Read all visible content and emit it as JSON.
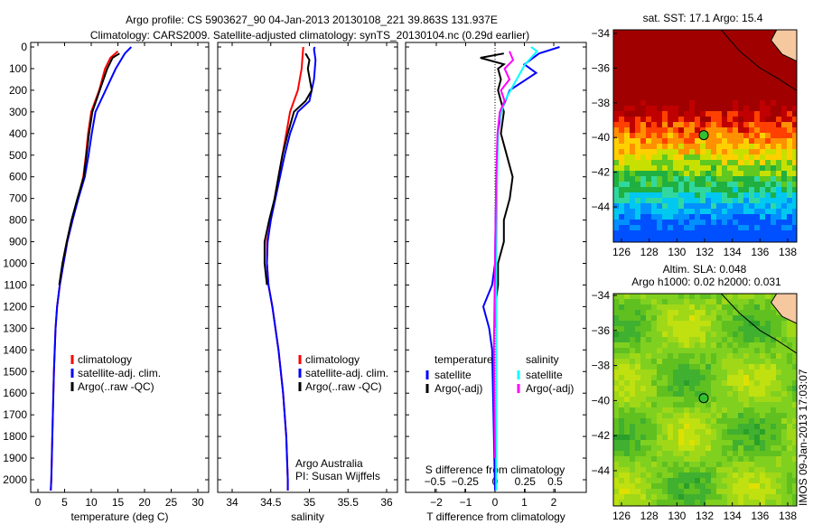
{
  "title_line1": "Argo profile: CS 5903627_90 04-Jan-2013 20130108_221 39.863S 131.937E",
  "title_line2": "Climatology: CARS2009. Satellite-adjusted climatology: synTS_20130104.nc (0.29d earlier)",
  "colors": {
    "climatology": "#ff0000",
    "satellite": "#0000ff",
    "argo": "#000000",
    "sal_satellite": "#00ffff",
    "sal_argo": "#ff00ff"
  },
  "chart_data": [
    {
      "type": "line",
      "id": "temperature",
      "xlabel": "temperature (deg C)",
      "ylabel": "",
      "xlim": [
        -2,
        31
      ],
      "ylim": [
        2070,
        0
      ],
      "xticks": [
        0,
        5,
        10,
        15,
        20,
        25,
        30
      ],
      "yticks": [
        0,
        100,
        200,
        300,
        400,
        500,
        600,
        700,
        800,
        900,
        1000,
        1100,
        1200,
        1300,
        1400,
        1500,
        1600,
        1700,
        1800,
        1900,
        2000
      ],
      "legend": [
        "climatology",
        "satellite-adj. clim.",
        "Argo(..raw -QC)"
      ],
      "legend_placement": "bottom-center",
      "series": [
        {
          "name": "climatology",
          "color": "#ff0000",
          "depth": [
            20,
            50,
            100,
            200,
            300,
            400,
            500,
            600,
            700,
            800,
            900,
            1000,
            1100,
            1200,
            1300,
            1500,
            1700,
            2000,
            2050
          ],
          "values": [
            15,
            13.6,
            12.6,
            11.5,
            10,
            9.4,
            9,
            8.5,
            7.5,
            6.5,
            5.5,
            4.8,
            4.1,
            3.6,
            3.3,
            3,
            2.8,
            2.5,
            2.4
          ]
        },
        {
          "name": "satellite-adj. clim.",
          "color": "#0000ff",
          "depth": [
            0,
            30,
            100,
            200,
            300,
            400,
            500,
            600,
            700,
            800,
            900,
            1000,
            1100,
            1200,
            1300,
            1500,
            1700,
            2000,
            2050
          ],
          "values": [
            17.5,
            16.3,
            14.6,
            12.7,
            10.8,
            10.1,
            9.5,
            8.8,
            7.6,
            6.5,
            5.5,
            4.8,
            4.1,
            3.6,
            3.3,
            3,
            2.8,
            2.5,
            2.4
          ]
        },
        {
          "name": "Argo(..raw -QC)",
          "color": "#000000",
          "depth": [
            30,
            50,
            100,
            200,
            300,
            400,
            500,
            600,
            700,
            800,
            900,
            1000,
            1100
          ],
          "values": [
            15.3,
            14,
            13,
            11.6,
            10.2,
            9.6,
            9.1,
            8.6,
            7.4,
            6.3,
            5.4,
            4.6,
            4.0
          ]
        }
      ]
    },
    {
      "type": "line",
      "id": "salinity",
      "xlabel": "salinity",
      "xlim": [
        33.6,
        36.2
      ],
      "ylim": [
        2070,
        0
      ],
      "xticks": [
        34,
        34.5,
        35,
        35.5,
        36
      ],
      "legend": [
        "climatology",
        "satellite-adj. clim.",
        "Argo(..raw -QC)"
      ],
      "annotation": [
        "Argo Australia",
        "PI: Susan Wijffels"
      ],
      "series": [
        {
          "name": "climatology",
          "color": "#ff0000",
          "depth": [
            0,
            100,
            200,
            300,
            400,
            500,
            600,
            700,
            800,
            900,
            1000,
            1100,
            1200,
            1400,
            1600,
            1800,
            2000,
            2050
          ],
          "values": [
            34.92,
            34.9,
            34.85,
            34.75,
            34.7,
            34.65,
            34.6,
            34.55,
            34.5,
            34.45,
            34.45,
            34.47,
            34.52,
            34.6,
            34.66,
            34.7,
            34.72,
            34.72
          ]
        },
        {
          "name": "satellite-adj. clim.",
          "color": "#0000ff",
          "depth": [
            0,
            10,
            60,
            150,
            250,
            300,
            400,
            500,
            600,
            700,
            800,
            900,
            1000,
            1100,
            1200,
            1400,
            1600,
            1800,
            2000,
            2050
          ],
          "values": [
            35.07,
            35.06,
            35.08,
            35.06,
            35.0,
            34.85,
            34.75,
            34.68,
            34.62,
            34.56,
            34.5,
            34.46,
            34.45,
            34.47,
            34.52,
            34.6,
            34.66,
            34.7,
            34.72,
            34.72
          ]
        },
        {
          "name": "Argo(..raw -QC)",
          "color": "#000000",
          "depth": [
            30,
            60,
            100,
            200,
            250,
            300,
            400,
            500,
            600,
            700,
            800,
            900,
            1000,
            1100
          ],
          "values": [
            34.95,
            35.0,
            34.98,
            35.03,
            34.95,
            34.8,
            34.72,
            34.65,
            34.6,
            34.55,
            34.48,
            34.42,
            34.42,
            34.45
          ]
        }
      ]
    },
    {
      "type": "line",
      "id": "difference",
      "xlabel": "T difference from climatology",
      "x2label": "S difference from climatology",
      "xlim": [
        -3.1,
        3.1
      ],
      "ylim": [
        2070,
        0
      ],
      "xticks": [
        -2,
        -1,
        0,
        1,
        2
      ],
      "x2ticks": [
        -0.5,
        -0.25,
        0,
        0.25,
        0.5
      ],
      "legend_titles": [
        "temperature",
        "salinity"
      ],
      "legend": [
        "satellite",
        "Argo(-adj)",
        "satellite",
        "Argo(-adj)"
      ],
      "series": [
        {
          "name": "T satellite",
          "color": "#0000ff",
          "axis": "T",
          "depth": [
            0,
            30,
            80,
            120,
            200,
            300,
            400,
            600,
            800,
            1000,
            1100,
            1200,
            1300,
            1400,
            2050
          ],
          "values": [
            2.2,
            1.5,
            1.0,
            1.4,
            0.5,
            0.2,
            0.1,
            0.05,
            0.02,
            0.0,
            -0.1,
            -0.4,
            -0.2,
            -0.1,
            0
          ]
        },
        {
          "name": "T Argo(-adj)",
          "color": "#000000",
          "axis": "T",
          "depth": [
            30,
            50,
            80,
            100,
            150,
            200,
            250,
            300,
            400,
            500,
            600,
            700,
            800,
            900,
            1000,
            1100,
            1200,
            1300
          ],
          "values": [
            0.3,
            -0.5,
            0.3,
            0.1,
            0.2,
            0.1,
            0.2,
            0.3,
            0.2,
            0.4,
            0.6,
            0.5,
            0.3,
            0.3,
            0.1,
            0.1,
            0.0,
            0.0
          ]
        },
        {
          "name": "S satellite",
          "color": "#00ffff",
          "axis": "S",
          "depth": [
            0,
            20,
            80,
            150,
            250,
            350,
            500,
            1000,
            1500,
            2050
          ],
          "values": [
            0.3,
            0.35,
            0.25,
            0.18,
            0.08,
            0.03,
            0.02,
            0.01,
            0.01,
            0.01
          ]
        },
        {
          "name": "S Argo(-adj)",
          "color": "#ff00ff",
          "axis": "S",
          "depth": [
            20,
            60,
            100,
            150,
            200,
            250,
            300,
            400,
            600,
            1000,
            1400,
            1900
          ],
          "values": [
            0.12,
            0.15,
            0.08,
            0.12,
            0.05,
            0.08,
            0.04,
            0.02,
            0.01,
            0.0,
            -0.01,
            0.0
          ]
        }
      ]
    }
  ],
  "maps": [
    {
      "id": "sst",
      "title": "sat. SST: 17.1  Argo: 15.4",
      "xticks": [
        126,
        128,
        130,
        132,
        134,
        136,
        138
      ],
      "yticks": [
        -34,
        -36,
        -38,
        -40,
        -42,
        -44
      ]
    },
    {
      "id": "sla",
      "title1": "Altim. SLA: 0.048",
      "title2": "Argo h1000: 0.02 h2000: 0.031",
      "xticks": [
        126,
        128,
        130,
        132,
        134,
        136,
        138
      ],
      "yticks": [
        -34,
        -36,
        -38,
        -40,
        -42,
        -44
      ]
    }
  ],
  "argo_position": {
    "lat": -39.863,
    "lon": 131.937
  },
  "footer_stamp": "IMOS 09-Jan-2013 17:03:07"
}
